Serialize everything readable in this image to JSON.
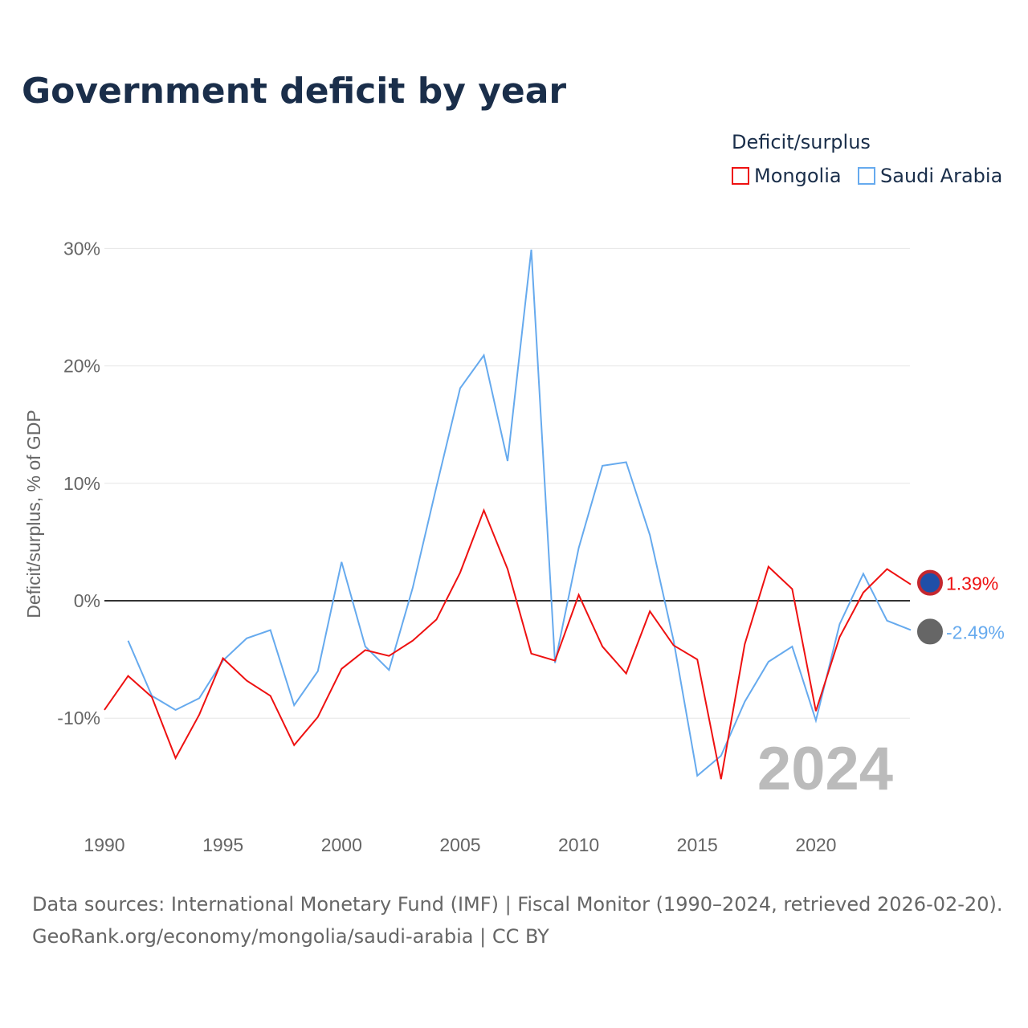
{
  "title": "Government deficit by year",
  "legend": {
    "title": "Deficit/surplus",
    "items": [
      "Mongolia",
      "Saudi Arabia"
    ]
  },
  "footer": {
    "line1": "Data sources: International Monetary Fund (IMF) | Fiscal Monitor (1990–2024, retrieved 2026-02-20).",
    "line2": "GeoRank.org/economy/mongolia/saudi-arabia | CC BY"
  },
  "chart_data": {
    "type": "line",
    "title": "Government deficit by year",
    "ylabel": "Deficit/surplus, % of GDP",
    "xlabel": "",
    "xlim": [
      1990,
      2024
    ],
    "ylim": [
      -18,
      30
    ],
    "xticks": [
      1990,
      1995,
      2000,
      2005,
      2010,
      2015,
      2020
    ],
    "xtick_labels": [
      "1990",
      "1995",
      "2000",
      "2005",
      "2010",
      "2015",
      "2020"
    ],
    "yticks": [
      -10,
      0,
      10,
      20,
      30
    ],
    "ytick_labels": [
      "-10%",
      "0%",
      "10%",
      "20%",
      "30%"
    ],
    "year_watermark": "2024",
    "series": [
      {
        "name": "Mongolia",
        "color": "#ee1111",
        "end_label": "1.39%",
        "x": [
          1990,
          1991,
          1992,
          1993,
          1994,
          1995,
          1996,
          1997,
          1998,
          1999,
          2000,
          2001,
          2002,
          2003,
          2004,
          2005,
          2006,
          2007,
          2008,
          2009,
          2010,
          2011,
          2012,
          2013,
          2014,
          2015,
          2016,
          2017,
          2018,
          2019,
          2020,
          2021,
          2022,
          2023,
          2024
        ],
        "values": [
          -9.3,
          -6.4,
          -8.2,
          -13.4,
          -9.7,
          -4.9,
          -6.8,
          -8.1,
          -12.3,
          -9.9,
          -5.8,
          -4.2,
          -4.7,
          -3.4,
          -1.6,
          2.4,
          7.7,
          2.7,
          -4.5,
          -5.1,
          0.5,
          -3.9,
          -6.2,
          -0.9,
          -3.8,
          -5.0,
          -15.2,
          -3.7,
          2.9,
          1.0,
          -9.4,
          -3.1,
          0.7,
          2.7,
          1.39
        ]
      },
      {
        "name": "Saudi Arabia",
        "color": "#66aaee",
        "end_label": "-2.49%",
        "x": [
          1991,
          1992,
          1993,
          1994,
          1995,
          1996,
          1997,
          1998,
          1999,
          2000,
          2001,
          2002,
          2003,
          2004,
          2005,
          2006,
          2007,
          2008,
          2009,
          2010,
          2011,
          2012,
          2013,
          2014,
          2015,
          2016,
          2017,
          2018,
          2019,
          2020,
          2021,
          2022,
          2023,
          2024
        ],
        "values": [
          -3.4,
          -8.1,
          -9.3,
          -8.3,
          -5.1,
          -3.2,
          -2.5,
          -8.9,
          -6.0,
          3.3,
          -3.9,
          -5.9,
          1.1,
          9.7,
          18.1,
          20.9,
          11.9,
          29.9,
          -5.3,
          4.5,
          11.5,
          11.8,
          5.6,
          -3.4,
          -14.9,
          -13.2,
          -8.6,
          -5.2,
          -3.9,
          -10.2,
          -2.0,
          2.3,
          -1.7,
          -2.49
        ]
      }
    ]
  }
}
